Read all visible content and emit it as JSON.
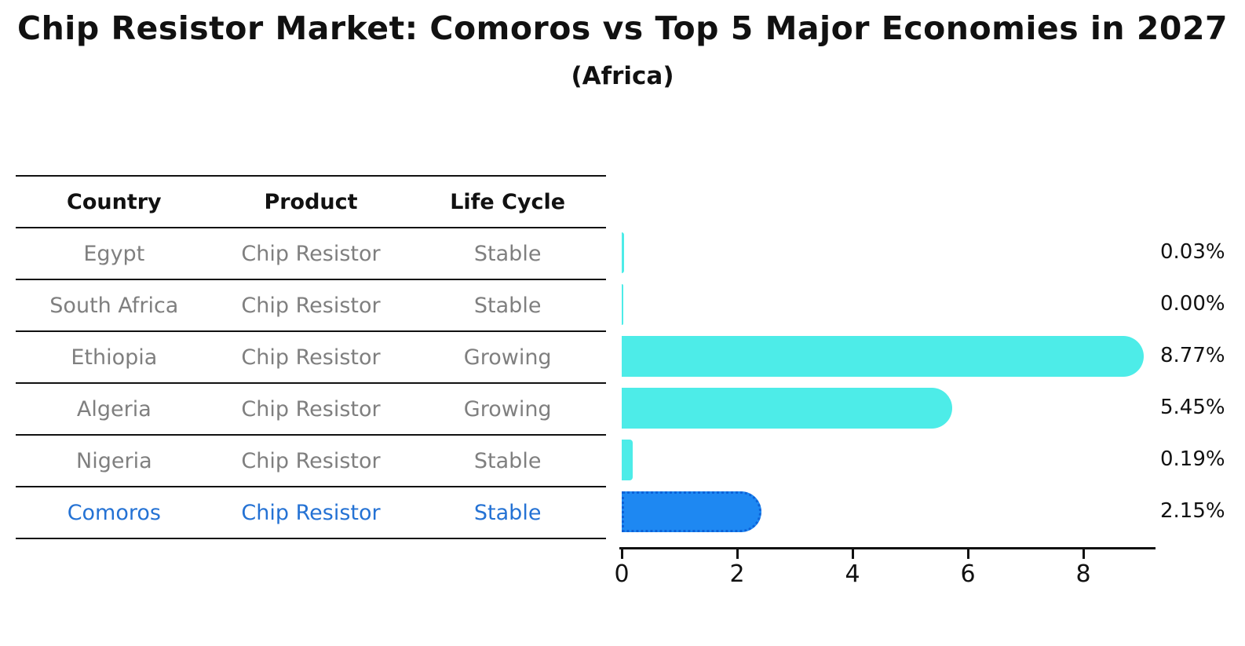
{
  "title": "Chip Resistor Market: Comoros vs Top 5 Major Economies in 2027",
  "subtitle": "(Africa)",
  "table": {
    "headers": {
      "country": "Country",
      "product": "Product",
      "life_cycle": "Life Cycle"
    },
    "rows": [
      {
        "country": "Egypt",
        "product": "Chip Resistor",
        "life_cycle": "Stable",
        "value_label": "0.03%"
      },
      {
        "country": "South Africa",
        "product": "Chip Resistor",
        "life_cycle": "Stable",
        "value_label": "0.00%"
      },
      {
        "country": "Ethiopia",
        "product": "Chip Resistor",
        "life_cycle": "Growing",
        "value_label": "8.77%"
      },
      {
        "country": "Algeria",
        "product": "Chip Resistor",
        "life_cycle": "Growing",
        "value_label": "5.45%"
      },
      {
        "country": "Nigeria",
        "product": "Chip Resistor",
        "life_cycle": "Stable",
        "value_label": "0.19%"
      },
      {
        "country": "Comoros",
        "product": "Chip Resistor",
        "life_cycle": "Stable",
        "value_label": "2.15%"
      }
    ]
  },
  "chart_data": {
    "type": "bar",
    "orientation": "horizontal",
    "title": "Chip Resistor Market: Comoros vs Top 5 Major Economies in 2027",
    "subtitle": "(Africa)",
    "categories": [
      "Egypt",
      "South Africa",
      "Ethiopia",
      "Algeria",
      "Nigeria",
      "Comoros"
    ],
    "values": [
      0.03,
      0.0,
      8.77,
      5.45,
      0.19,
      2.15
    ],
    "value_labels": [
      "0.03%",
      "0.00%",
      "8.77%",
      "5.45%",
      "0.19%",
      "2.15%"
    ],
    "x_ticks": [
      0,
      2,
      4,
      6,
      8
    ],
    "xlim": [
      0,
      9.2
    ],
    "grid": false,
    "legend": false,
    "bar_color": "#4DECE8",
    "highlight_index": 5,
    "highlight_bar_color": "#1E88F2",
    "highlight_border_color": "#0D62D8",
    "highlight_text_color": "#2472D4",
    "table_text_color": "#7F7F7F",
    "axis_color": "#111111"
  }
}
